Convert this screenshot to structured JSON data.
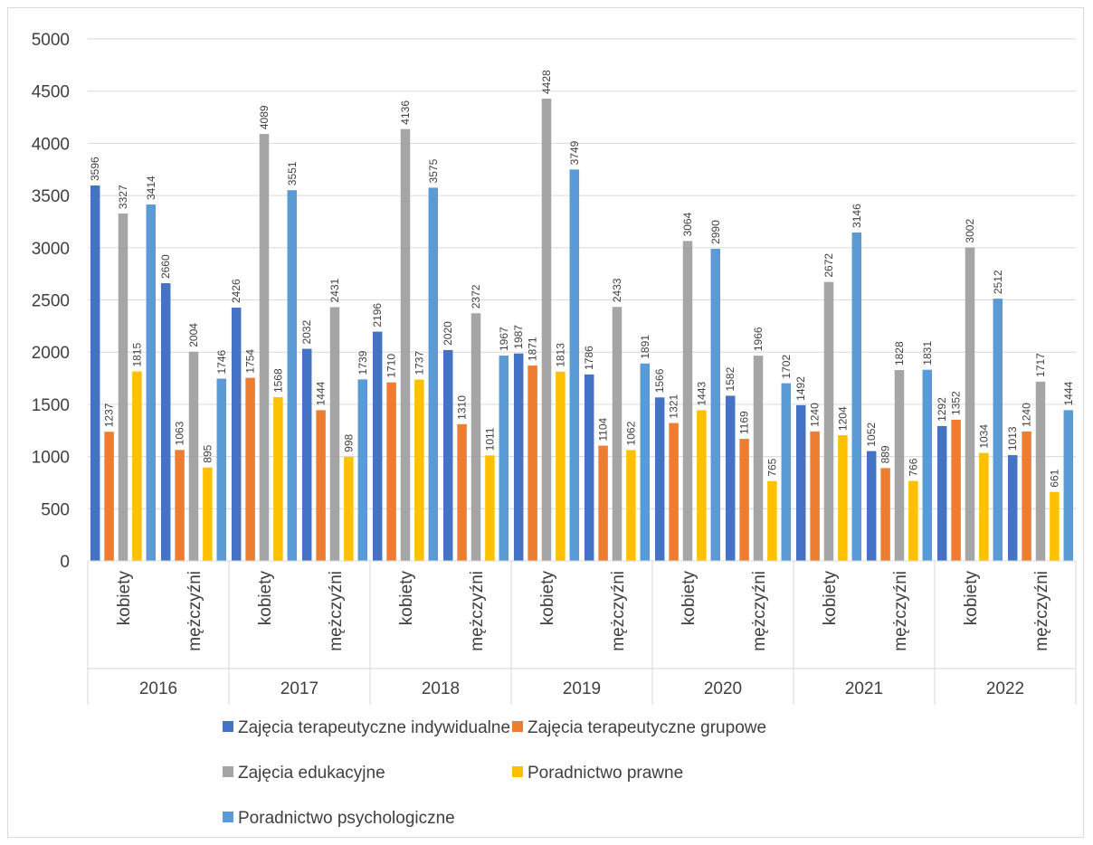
{
  "chart_data": {
    "type": "bar",
    "ylim": [
      0,
      5000
    ],
    "yticks": [
      0,
      500,
      1000,
      1500,
      2000,
      2500,
      3000,
      3500,
      4000,
      4500,
      5000
    ],
    "grid": true,
    "legend_position": "bottom",
    "groups": [
      "2016",
      "2017",
      "2018",
      "2019",
      "2020",
      "2021",
      "2022"
    ],
    "categories": [
      "kobiety",
      "mężczyźni",
      "kobiety",
      "mężczyźni",
      "kobiety",
      "mężczyźni",
      "kobiety",
      "mężczyźni",
      "kobiety",
      "mężczyźni",
      "kobiety",
      "mężczyźni",
      "kobiety",
      "mężczyźni"
    ],
    "series": [
      {
        "name": "Zajęcia terapeutyczne indywidualne",
        "color": "#4472c4",
        "values": [
          3596,
          2660,
          2426,
          2032,
          2196,
          2020,
          1987,
          1786,
          1566,
          1582,
          1492,
          1052,
          1292,
          1013
        ]
      },
      {
        "name": "Zajęcia terapeutyczne grupowe",
        "color": "#ed7d31",
        "values": [
          1237,
          1063,
          1754,
          1444,
          1710,
          1310,
          1871,
          1104,
          1321,
          1169,
          1240,
          889,
          1352,
          1240
        ]
      },
      {
        "name": "Zajęcia edukacyjne",
        "color": "#a5a5a5",
        "values": [
          3327,
          2004,
          4089,
          2431,
          4136,
          2372,
          4428,
          2433,
          3064,
          1966,
          2672,
          1828,
          3002,
          1717
        ]
      },
      {
        "name": "Poradnictwo prawne",
        "color": "#ffc000",
        "values": [
          1815,
          895,
          1568,
          998,
          1737,
          1011,
          1813,
          1062,
          1443,
          765,
          1204,
          766,
          1034,
          661
        ]
      },
      {
        "name": "Poradnictwo psychologiczne",
        "color": "#5b9bd5",
        "values": [
          3414,
          1746,
          3551,
          1739,
          3575,
          1967,
          3749,
          1891,
          2990,
          1702,
          3146,
          1831,
          2512,
          1444
        ]
      }
    ]
  }
}
